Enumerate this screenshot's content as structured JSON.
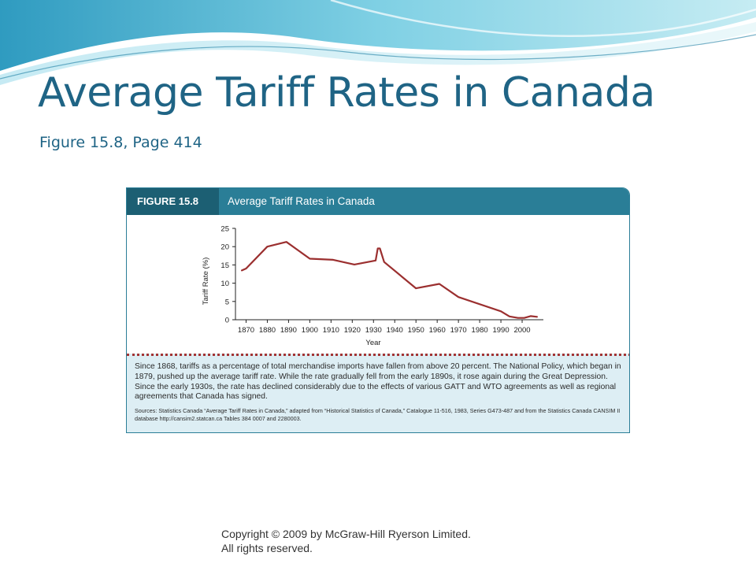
{
  "slide": {
    "title": "Average Tariff Rates in Canada",
    "subtitle": "Figure 15.8, Page 414",
    "copyright": "Copyright © 2009 by McGraw-Hill Ryerson Limited. All rights reserved."
  },
  "figure": {
    "label": "FIGURE 15.8",
    "title": "Average Tariff Rates in Canada",
    "caption": "Since 1868, tariffs as a percentage of total merchandise imports have fallen from above 20 percent. The National Policy, which began in 1879, pushed up the average tariff rate. While the rate gradually fell from the early 1890s, it rose again during the Great Depression. Since the early 1930s, the rate has declined considerably due to the effects of various GATT and WTO agreements as well as regional agreements that Canada has signed.",
    "sources": "Sources: Statistics Canada “Average Tariff Rates in Canada,” adapted from “Historical Statistics of Canada,” Catalogue 11-516, 1983, Series G473-487 and from the Statistics Canada CANSIM II database http://cansim2.statcan.ca Tables 384 0007 and 2280003."
  },
  "colors": {
    "title": "#1f6485",
    "header_bar": "#2a7e97",
    "label_box": "#1c5f73",
    "line": "#9b2f2f",
    "caption_bg": "#ddeef4"
  },
  "chart_data": {
    "type": "line",
    "title": "",
    "xlabel": "Year",
    "ylabel": "Tariff Rate (%)",
    "xlim": [
      1865,
      2010
    ],
    "ylim": [
      0,
      25
    ],
    "x_ticks": [
      1870,
      1880,
      1890,
      1900,
      1910,
      1920,
      1930,
      1940,
      1950,
      1960,
      1970,
      1980,
      1990,
      2000
    ],
    "x_tick_labels": [
      "1870",
      "1880",
      "1890",
      "1900",
      "1910",
      "1920",
      "1930",
      "1940",
      "1950",
      "1960",
      "1970",
      "1980",
      "1990",
      "2000"
    ],
    "y_ticks": [
      0,
      5,
      10,
      15,
      20,
      25
    ],
    "y_tick_labels": [
      "0",
      "5",
      "10",
      "15",
      "20",
      "25"
    ],
    "grid": false,
    "series": [
      {
        "x": [
          1868,
          1870,
          1880,
          1889,
          1900,
          1911,
          1921,
          1931,
          1932,
          1933,
          1935,
          1950,
          1961,
          1970,
          1990,
          1994,
          1998,
          2001,
          2004,
          2007
        ],
        "y": [
          13.5,
          14,
          20,
          21.3,
          16.7,
          16.4,
          15.1,
          16.2,
          19.5,
          19.5,
          15.8,
          8.6,
          9.8,
          6.2,
          2.3,
          0.9,
          0.5,
          0.5,
          1,
          0.8
        ]
      }
    ]
  }
}
